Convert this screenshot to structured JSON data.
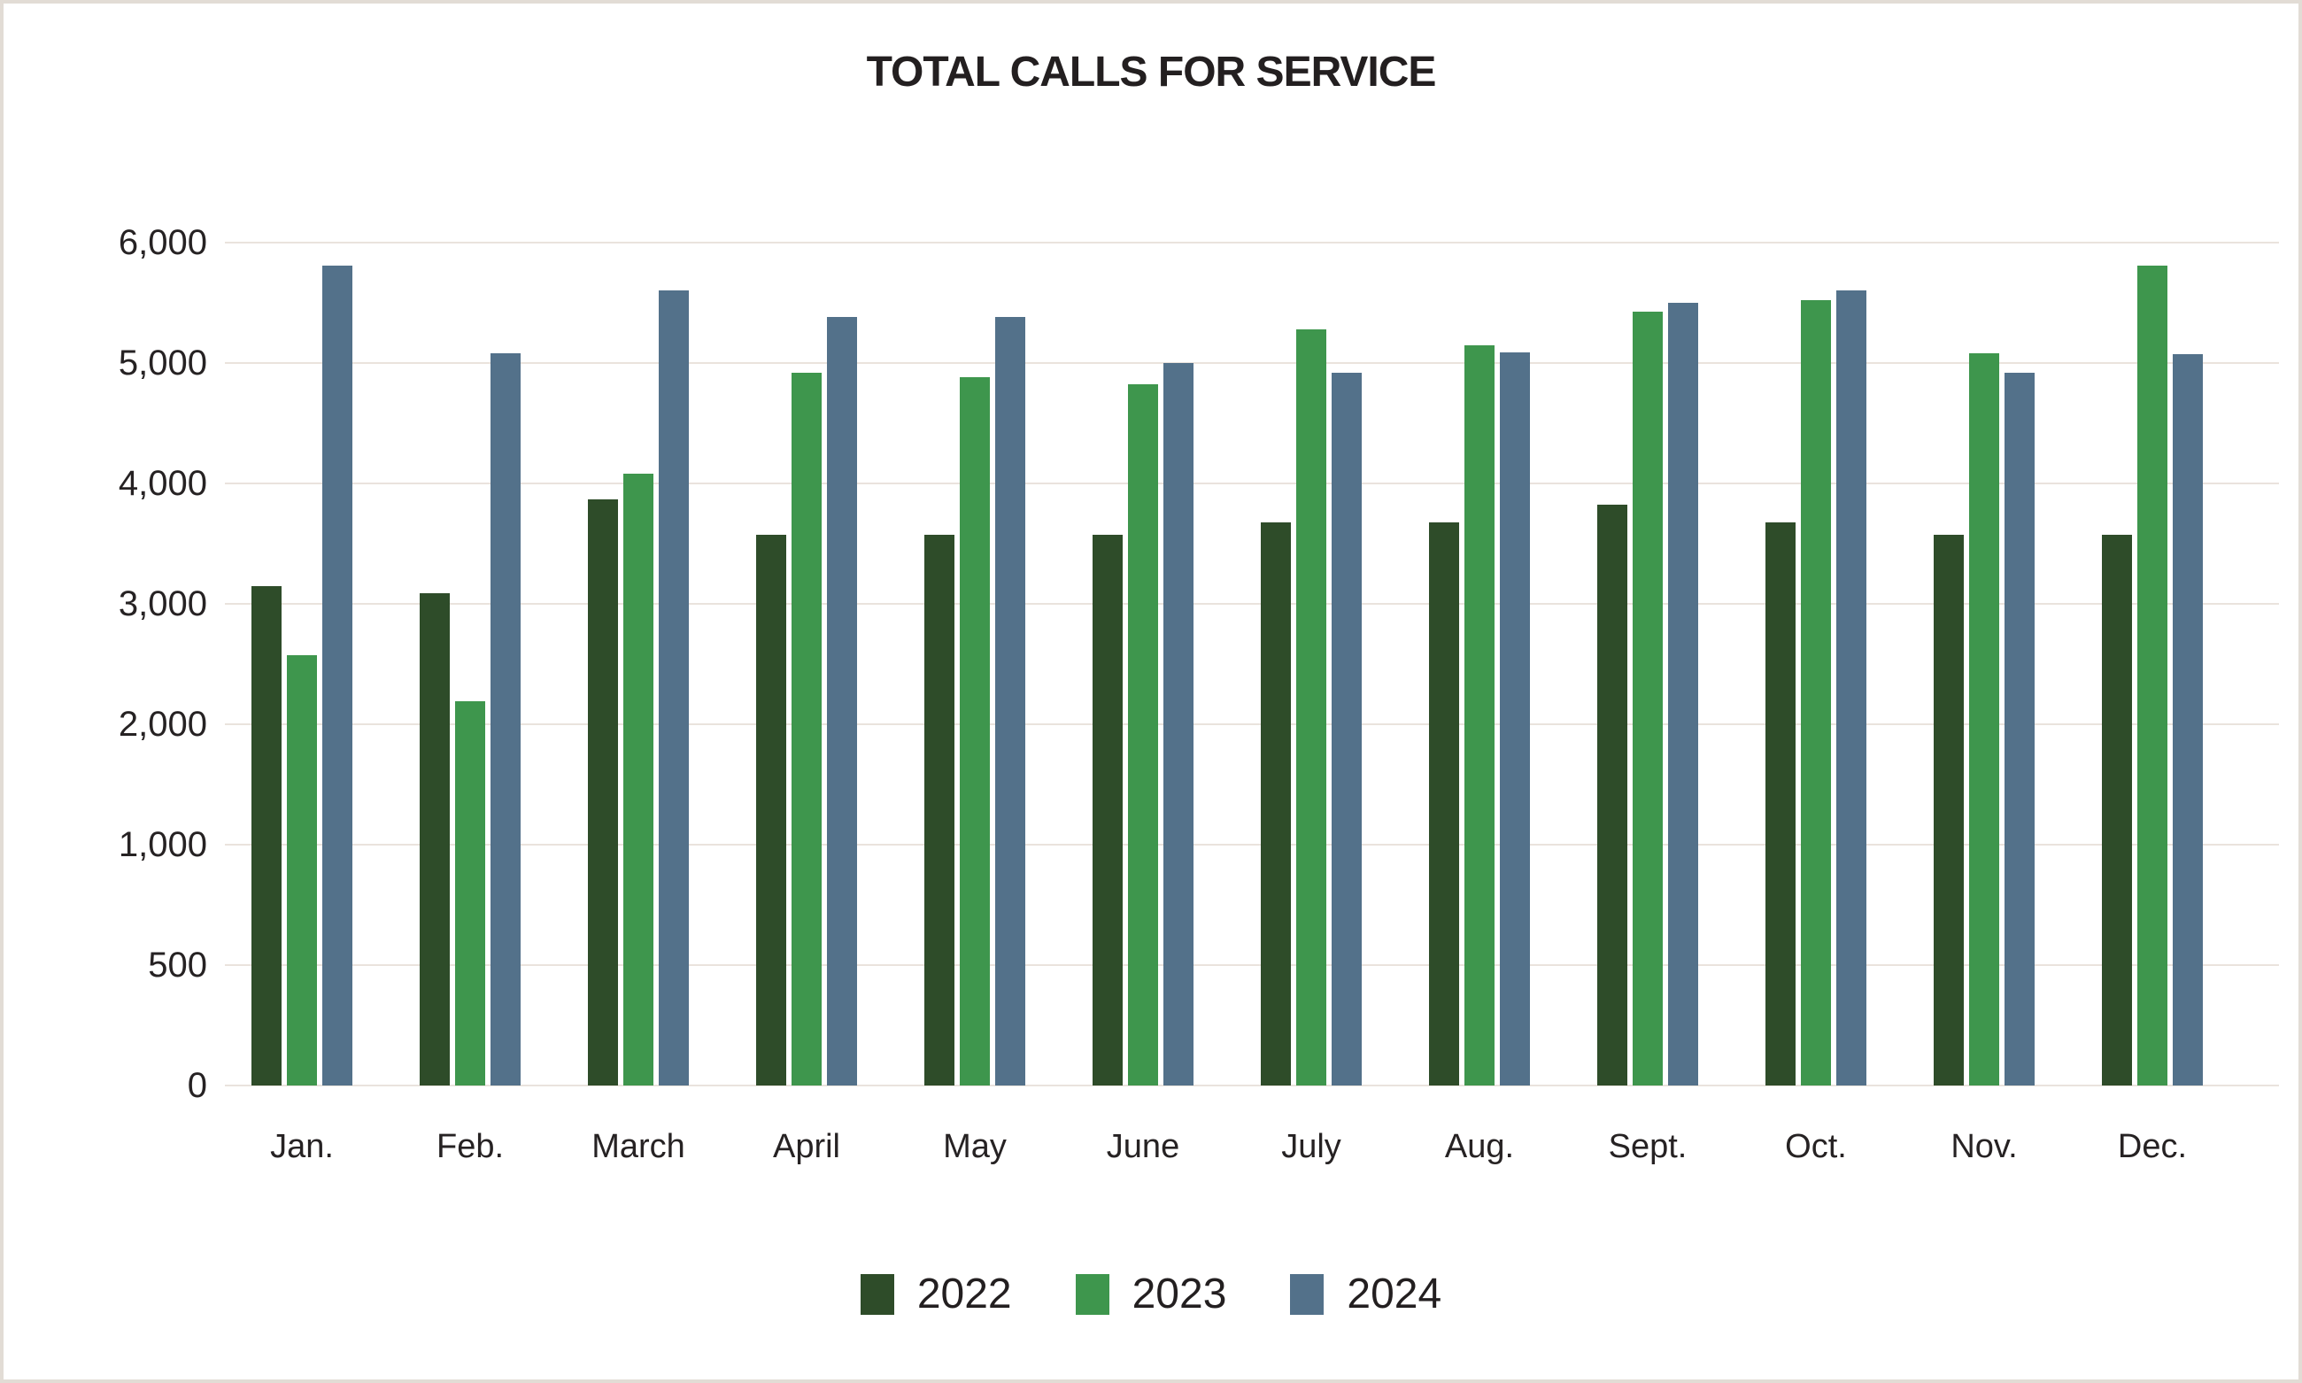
{
  "page": {
    "background": "#ffffff",
    "border_color": "#e2dcd5"
  },
  "colors": {
    "text": "#231f20",
    "gridline": "#eae3dd",
    "series_2022": "#2e4c29",
    "series_2023": "#3e964d",
    "series_2024": "#53718a"
  },
  "chart_data": {
    "type": "bar",
    "title": "TOTAL CALLS FOR SERVICE",
    "categories": [
      "Jan.",
      "Feb.",
      "March",
      "April",
      "May",
      "June",
      "July",
      "Aug.",
      "Sept.",
      "Oct.",
      "Nov.",
      "Dec."
    ],
    "series": [
      {
        "name": "2022",
        "color": "#2e4c29",
        "values": [
          3150,
          3090,
          3870,
          3570,
          3570,
          3570,
          3680,
          3680,
          3820,
          3680,
          3570,
          3570
        ]
      },
      {
        "name": "2023",
        "color": "#3e964d",
        "values": [
          2570,
          2190,
          4080,
          4920,
          4880,
          4820,
          5280,
          5150,
          5430,
          5520,
          5080,
          5810
        ]
      },
      {
        "name": "2024",
        "color": "#53718a",
        "values": [
          5810,
          5080,
          5600,
          5380,
          5380,
          5000,
          4920,
          5090,
          5500,
          5600,
          4920,
          5070
        ]
      }
    ],
    "y_ticks": [
      0,
      500,
      1000,
      2000,
      3000,
      4000,
      5000,
      6000
    ],
    "y_tick_labels": [
      "0",
      "500",
      "1,000",
      "2,000",
      "3,000",
      "4,000",
      "5,000",
      "6,000"
    ],
    "ylim": [
      0,
      6000
    ],
    "grid": true,
    "axis_note": "y tick labels are evenly spaced gridlines (non-linear value axis)",
    "legend_position": "bottom",
    "xlabel": "",
    "ylabel": ""
  }
}
